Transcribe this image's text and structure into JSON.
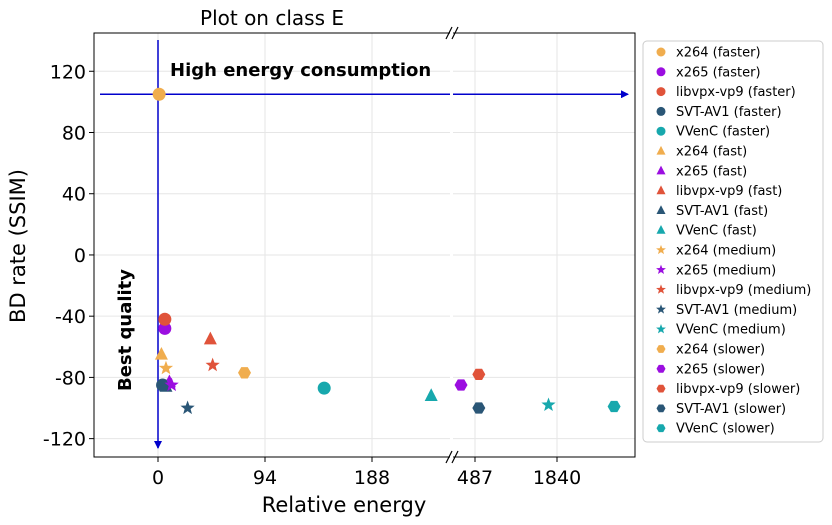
{
  "chart_data": {
    "type": "scatter",
    "title": "Plot on class E",
    "xlabel": "Relative energy",
    "ylabel": "BD rate (SSIM)",
    "ylim": [
      -132,
      145
    ],
    "yticks": [
      120,
      80,
      40,
      0,
      -40,
      -80,
      -120
    ],
    "xticks_left": [
      0,
      94,
      188
    ],
    "xticks_right": [
      487,
      1840
    ],
    "xbreak": true,
    "grid": true,
    "legend_position": "right",
    "annotations": {
      "high_energy": "High energy consumption",
      "best_quality": "Best quality"
    },
    "series": [
      {
        "name": "x264 (faster)",
        "color": "#f0ad4e",
        "marker": "circle",
        "points": [
          [
            1,
            105
          ]
        ]
      },
      {
        "name": "x265 (faster)",
        "color": "#9b0ee0",
        "marker": "circle",
        "points": [
          [
            6,
            -48
          ]
        ]
      },
      {
        "name": "libvpx-vp9 (faster)",
        "color": "#e0533a",
        "marker": "circle",
        "points": [
          [
            6,
            -42
          ]
        ]
      },
      {
        "name": "SVT-AV1 (faster)",
        "color": "#2a5676",
        "marker": "circle",
        "points": [
          [
            4,
            -85
          ]
        ]
      },
      {
        "name": "VVenC (faster)",
        "color": "#17a8ad",
        "marker": "circle",
        "points": [
          [
            146,
            -87
          ]
        ]
      },
      {
        "name": "x264 (fast)",
        "color": "#f0ad4e",
        "marker": "triangle",
        "points": [
          [
            3,
            -65
          ]
        ]
      },
      {
        "name": "x265 (fast)",
        "color": "#9b0ee0",
        "marker": "triangle",
        "points": [
          [
            10,
            -83
          ]
        ]
      },
      {
        "name": "libvpx-vp9 (fast)",
        "color": "#e0533a",
        "marker": "triangle",
        "points": [
          [
            46,
            -55
          ]
        ]
      },
      {
        "name": "SVT-AV1 (fast)",
        "color": "#2a5676",
        "marker": "triangle",
        "points": [
          [
            7,
            -86
          ]
        ]
      },
      {
        "name": "VVenC (fast)",
        "color": "#17a8ad",
        "marker": "triangle",
        "points": [
          [
            240,
            -92
          ]
        ]
      },
      {
        "name": "x264 (medium)",
        "color": "#f0ad4e",
        "marker": "star",
        "points": [
          [
            7,
            -74
          ]
        ]
      },
      {
        "name": "x265 (medium)",
        "color": "#9b0ee0",
        "marker": "star",
        "points": [
          [
            12,
            -85
          ]
        ]
      },
      {
        "name": "libvpx-vp9 (medium)",
        "color": "#e0533a",
        "marker": "star",
        "points": [
          [
            48,
            -72
          ]
        ]
      },
      {
        "name": "SVT-AV1 (medium)",
        "color": "#2a5676",
        "marker": "star",
        "points": [
          [
            26,
            -100
          ]
        ]
      },
      {
        "name": "VVenC (medium)",
        "color": "#17a8ad",
        "marker": "star",
        "points": [
          [
            1700,
            -98
          ]
        ]
      },
      {
        "name": "x264 (slower)",
        "color": "#f0ad4e",
        "marker": "hexagon",
        "points": [
          [
            76,
            -77
          ]
        ]
      },
      {
        "name": "x265 (slower)",
        "color": "#9b0ee0",
        "marker": "hexagon",
        "points": [
          [
            400,
            -85
          ]
        ]
      },
      {
        "name": "libvpx-vp9 (slower)",
        "color": "#e0533a",
        "marker": "hexagon",
        "points": [
          [
            550,
            -78
          ]
        ]
      },
      {
        "name": "SVT-AV1 (slower)",
        "color": "#2a5676",
        "marker": "hexagon",
        "points": [
          [
            550,
            -100
          ]
        ]
      },
      {
        "name": "VVenC (slower)",
        "color": "#17a8ad",
        "marker": "hexagon",
        "points": [
          [
            2250,
            -99
          ]
        ]
      }
    ]
  }
}
